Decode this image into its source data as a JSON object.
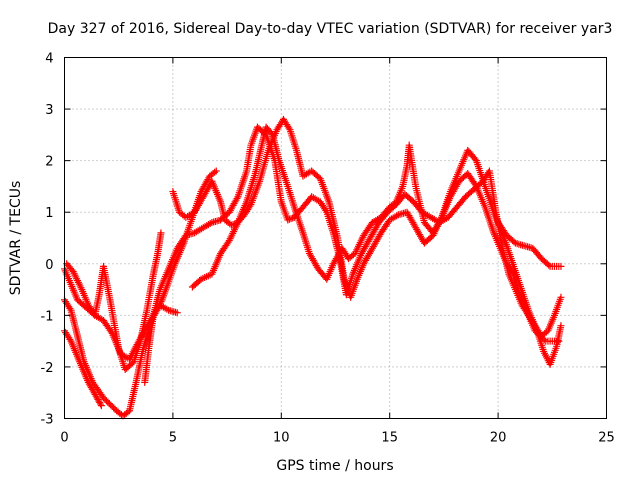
{
  "chart_data": {
    "type": "scatter",
    "title": "Day 327 of 2016, Sidereal Day-to-day VTEC variation (SDTVAR) for receiver yar3",
    "xlabel": "GPS time / hours",
    "ylabel": "SDTVAR / TECUs",
    "xlim": [
      0,
      25
    ],
    "ylim": [
      -3,
      4
    ],
    "x_ticks": [
      "0",
      "5",
      "10",
      "15",
      "20",
      "25"
    ],
    "y_ticks": [
      "-3",
      "-2",
      "-1",
      "0",
      "1",
      "2",
      "3",
      "4"
    ],
    "grid": true,
    "marker": "+",
    "color": "#ff0000",
    "series": [
      {
        "name": "track-1",
        "points": [
          [
            0.0,
            -1.3
          ],
          [
            0.3,
            -1.5
          ],
          [
            0.7,
            -1.9
          ],
          [
            1.1,
            -2.3
          ],
          [
            1.5,
            -2.6
          ],
          [
            1.7,
            -2.75
          ]
        ]
      },
      {
        "name": "track-2",
        "points": [
          [
            0.0,
            -0.7
          ],
          [
            0.3,
            -0.9
          ],
          [
            0.6,
            -1.4
          ],
          [
            0.9,
            -1.9
          ],
          [
            1.3,
            -2.3
          ],
          [
            1.8,
            -2.6
          ],
          [
            2.4,
            -2.85
          ],
          [
            2.7,
            -2.95
          ],
          [
            3.0,
            -2.85
          ],
          [
            3.3,
            -2.3
          ],
          [
            3.6,
            -1.7
          ],
          [
            4.0,
            -1.1
          ],
          [
            4.4,
            -0.8
          ],
          [
            4.8,
            -0.9
          ],
          [
            5.2,
            -0.95
          ]
        ]
      },
      {
        "name": "track-3",
        "points": [
          [
            0.0,
            -0.1
          ],
          [
            0.3,
            -0.4
          ],
          [
            0.6,
            -0.7
          ],
          [
            1.0,
            -0.85
          ],
          [
            1.4,
            -1.0
          ],
          [
            1.8,
            -1.1
          ],
          [
            2.2,
            -1.35
          ],
          [
            2.6,
            -1.75
          ],
          [
            3.0,
            -1.85
          ],
          [
            3.3,
            -1.6
          ],
          [
            3.7,
            -1.3
          ],
          [
            4.1,
            -1.0
          ],
          [
            4.5,
            -0.7
          ],
          [
            4.8,
            -0.35
          ],
          [
            5.1,
            0.0
          ],
          [
            5.5,
            0.4
          ],
          [
            5.9,
            0.9
          ],
          [
            6.3,
            1.4
          ],
          [
            6.7,
            1.7
          ],
          [
            7.0,
            1.8
          ]
        ]
      },
      {
        "name": "track-4",
        "points": [
          [
            0.1,
            0.0
          ],
          [
            0.4,
            -0.15
          ],
          [
            0.8,
            -0.5
          ],
          [
            1.1,
            -0.8
          ],
          [
            1.4,
            -1.0
          ],
          [
            1.6,
            -0.6
          ],
          [
            1.8,
            -0.05
          ],
          [
            2.1,
            -0.7
          ],
          [
            2.5,
            -1.65
          ],
          [
            2.8,
            -2.05
          ],
          [
            3.2,
            -1.9
          ],
          [
            3.5,
            -1.5
          ],
          [
            3.8,
            -0.9
          ],
          [
            4.1,
            -0.2
          ],
          [
            4.3,
            0.2
          ],
          [
            4.45,
            0.6
          ]
        ]
      },
      {
        "name": "track-5",
        "points": [
          [
            3.7,
            -2.3
          ],
          [
            3.9,
            -1.6
          ],
          [
            4.1,
            -1.0
          ],
          [
            4.4,
            -0.5
          ],
          [
            4.8,
            -0.1
          ],
          [
            5.2,
            0.3
          ],
          [
            5.6,
            0.55
          ],
          [
            6.0,
            0.6
          ],
          [
            6.4,
            0.7
          ],
          [
            6.8,
            0.8
          ],
          [
            7.2,
            0.85
          ],
          [
            7.6,
            1.0
          ],
          [
            8.0,
            1.3
          ],
          [
            8.4,
            1.8
          ],
          [
            8.6,
            2.3
          ],
          [
            8.9,
            2.65
          ],
          [
            9.3,
            2.5
          ],
          [
            9.7,
            2.0
          ],
          [
            10.0,
            1.2
          ],
          [
            10.3,
            0.85
          ],
          [
            10.6,
            0.9
          ],
          [
            11.0,
            1.1
          ],
          [
            11.4,
            1.3
          ],
          [
            11.8,
            1.2
          ],
          [
            12.1,
            1.0
          ],
          [
            12.4,
            0.6
          ],
          [
            12.7,
            0.1
          ],
          [
            13.0,
            -0.6
          ],
          [
            13.3,
            -0.2
          ],
          [
            13.7,
            0.2
          ],
          [
            14.1,
            0.5
          ],
          [
            14.5,
            0.8
          ],
          [
            14.9,
            1.0
          ],
          [
            15.3,
            1.15
          ],
          [
            15.7,
            1.35
          ],
          [
            16.1,
            1.2
          ],
          [
            16.5,
            1.0
          ],
          [
            16.9,
            0.9
          ],
          [
            17.3,
            0.8
          ],
          [
            17.7,
            0.9
          ],
          [
            18.1,
            1.1
          ],
          [
            18.5,
            1.3
          ],
          [
            18.9,
            1.45
          ],
          [
            19.3,
            1.6
          ],
          [
            19.6,
            1.8
          ],
          [
            19.9,
            1.0
          ],
          [
            20.2,
            0.3
          ],
          [
            20.5,
            -0.2
          ],
          [
            20.8,
            -0.5
          ],
          [
            21.1,
            -0.8
          ],
          [
            21.4,
            -1.0
          ],
          [
            21.7,
            -1.2
          ],
          [
            22.0,
            -1.4
          ],
          [
            22.3,
            -1.3
          ],
          [
            22.6,
            -1.0
          ],
          [
            22.9,
            -0.65
          ]
        ]
      },
      {
        "name": "track-6",
        "points": [
          [
            5.0,
            1.4
          ],
          [
            5.3,
            1.0
          ],
          [
            5.6,
            0.9
          ],
          [
            6.0,
            1.0
          ],
          [
            6.4,
            1.3
          ],
          [
            6.8,
            1.6
          ],
          [
            7.2,
            1.2
          ],
          [
            7.4,
            0.85
          ],
          [
            7.7,
            0.75
          ],
          [
            8.0,
            0.8
          ],
          [
            8.3,
            0.95
          ],
          [
            8.6,
            1.15
          ],
          [
            9.0,
            1.6
          ],
          [
            9.4,
            2.2
          ],
          [
            9.8,
            2.6
          ],
          [
            10.1,
            2.8
          ],
          [
            10.4,
            2.6
          ],
          [
            10.7,
            2.2
          ],
          [
            11.0,
            1.7
          ],
          [
            11.4,
            1.8
          ],
          [
            11.8,
            1.65
          ],
          [
            12.2,
            1.2
          ],
          [
            12.6,
            0.5
          ],
          [
            12.9,
            -0.3
          ],
          [
            13.2,
            -0.65
          ],
          [
            13.5,
            -0.3
          ],
          [
            13.8,
            0.0
          ],
          [
            14.2,
            0.3
          ],
          [
            14.6,
            0.6
          ],
          [
            15.0,
            0.85
          ],
          [
            15.4,
            0.95
          ],
          [
            15.8,
            1.0
          ],
          [
            16.2,
            0.7
          ],
          [
            16.6,
            0.4
          ],
          [
            17.0,
            0.55
          ],
          [
            17.4,
            0.9
          ],
          [
            17.8,
            1.4
          ],
          [
            18.2,
            1.8
          ],
          [
            18.6,
            2.2
          ],
          [
            19.0,
            2.0
          ],
          [
            19.4,
            1.5
          ],
          [
            19.8,
            1.0
          ],
          [
            20.2,
            0.6
          ],
          [
            20.6,
            0.1
          ],
          [
            21.0,
            -0.4
          ],
          [
            21.4,
            -0.9
          ],
          [
            21.8,
            -1.3
          ],
          [
            22.1,
            -1.7
          ],
          [
            22.4,
            -1.95
          ],
          [
            22.7,
            -1.6
          ],
          [
            22.9,
            -1.2
          ]
        ]
      },
      {
        "name": "track-7",
        "points": [
          [
            5.9,
            -0.45
          ],
          [
            6.3,
            -0.3
          ],
          [
            6.8,
            -0.2
          ],
          [
            7.2,
            0.2
          ],
          [
            7.6,
            0.45
          ],
          [
            8.0,
            0.8
          ],
          [
            8.4,
            1.2
          ],
          [
            8.8,
            1.75
          ],
          [
            9.1,
            2.3
          ],
          [
            9.3,
            2.65
          ],
          [
            9.6,
            2.5
          ],
          [
            9.9,
            2.0
          ],
          [
            10.3,
            1.5
          ],
          [
            10.6,
            1.1
          ],
          [
            11.0,
            0.6
          ],
          [
            11.3,
            0.2
          ],
          [
            11.7,
            -0.1
          ],
          [
            12.1,
            -0.3
          ],
          [
            12.4,
            0.0
          ],
          [
            12.8,
            0.3
          ],
          [
            13.1,
            0.1
          ],
          [
            13.4,
            0.2
          ],
          [
            13.8,
            0.55
          ],
          [
            14.2,
            0.8
          ],
          [
            14.6,
            0.9
          ],
          [
            15.0,
            1.1
          ],
          [
            15.3,
            1.2
          ],
          [
            15.6,
            1.5
          ],
          [
            15.8,
            1.9
          ],
          [
            15.9,
            2.3
          ],
          [
            16.2,
            1.5
          ],
          [
            16.6,
            0.8
          ],
          [
            17.0,
            0.6
          ],
          [
            17.4,
            0.9
          ],
          [
            17.8,
            1.3
          ],
          [
            18.2,
            1.6
          ],
          [
            18.6,
            1.75
          ],
          [
            19.0,
            1.5
          ],
          [
            19.4,
            1.1
          ],
          [
            19.8,
            0.6
          ],
          [
            20.1,
            0.3
          ],
          [
            20.4,
            0.0
          ],
          [
            20.7,
            -0.2
          ],
          [
            21.0,
            -0.6
          ],
          [
            21.3,
            -0.9
          ],
          [
            21.7,
            -1.3
          ],
          [
            22.2,
            -1.5
          ],
          [
            22.8,
            -1.5
          ]
        ]
      },
      {
        "name": "track-8",
        "points": [
          [
            20.0,
            0.8
          ],
          [
            20.4,
            0.55
          ],
          [
            20.8,
            0.4
          ],
          [
            21.2,
            0.35
          ],
          [
            21.6,
            0.3
          ],
          [
            22.0,
            0.1
          ],
          [
            22.4,
            -0.05
          ],
          [
            22.9,
            -0.05
          ]
        ]
      }
    ]
  }
}
